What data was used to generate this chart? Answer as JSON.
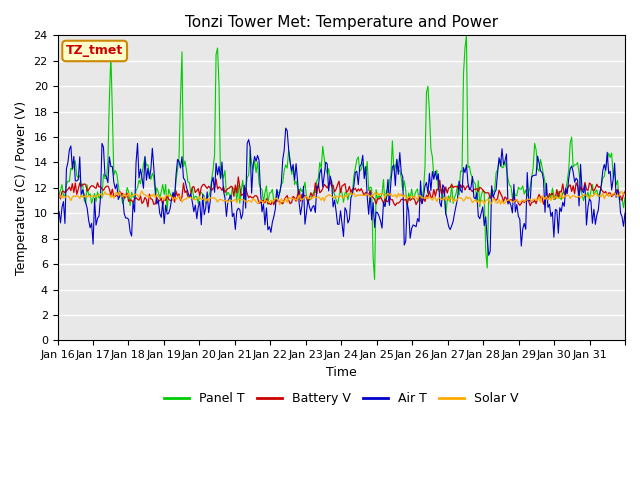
{
  "title": "Tonzi Tower Met: Temperature and Power",
  "xlabel": "Time",
  "ylabel": "Temperature (C) / Power (V)",
  "ylim": [
    0,
    24
  ],
  "yticks": [
    0,
    2,
    4,
    6,
    8,
    10,
    12,
    14,
    16,
    18,
    20,
    22,
    24
  ],
  "xtick_labels": [
    "Jan 16",
    "Jan 17",
    "Jan 18",
    "Jan 19",
    "Jan 20",
    "Jan 21",
    "Jan 22",
    "Jan 23",
    "Jan 24",
    "Jan 25",
    "Jan 26",
    "Jan 27",
    "Jan 28",
    "Jan 29",
    "Jan 30",
    "Jan 31",
    ""
  ],
  "annotation_text": "TZ_tmet",
  "annotation_color": "#cc0000",
  "annotation_bg": "#ffffcc",
  "annotation_edge": "#cc8800",
  "bg_color": "#e8e8e8",
  "grid_color": "#ffffff",
  "legend_entries": [
    "Panel T",
    "Battery V",
    "Air T",
    "Solar V"
  ],
  "line_colors": [
    "#00cc00",
    "#cc0000",
    "#0000cc",
    "#ffaa00"
  ],
  "title_fontsize": 11,
  "label_fontsize": 9,
  "tick_fontsize": 8
}
